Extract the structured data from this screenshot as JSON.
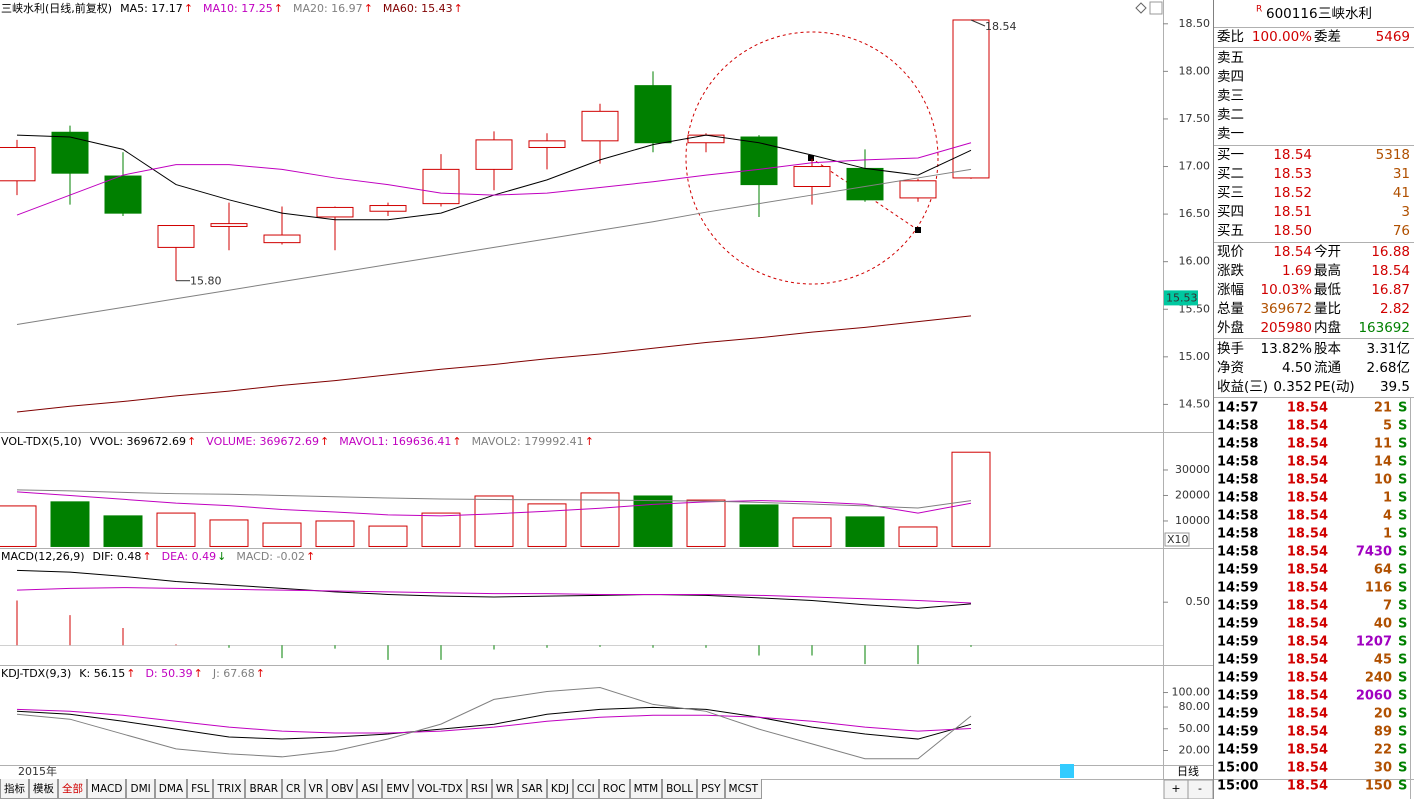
{
  "chart_data": [
    {
      "type": "candlestick",
      "title": "三峡水利(日线,前复权)",
      "legend": [
        {
          "text": "MA5: 17.17",
          "color": "#000000",
          "arrow": "↑",
          "arrow_color": "#e00000"
        },
        {
          "text": "MA10: 17.25",
          "color": "#c000c0",
          "arrow": "↑",
          "arrow_color": "#e00000"
        },
        {
          "text": "MA20: 16.97",
          "color": "#808080",
          "arrow": "↑",
          "arrow_color": "#e00000"
        },
        {
          "text": "MA60: 15.43",
          "color": "#800000",
          "arrow": "↑",
          "arrow_color": "#e00000"
        }
      ],
      "open": [
        16.85,
        17.36,
        16.9,
        16.15,
        16.37,
        16.2,
        16.47,
        16.53,
        16.61,
        16.97,
        17.2,
        17.27,
        17.85,
        17.25,
        17.31,
        16.79,
        16.98,
        16.67,
        16.88
      ],
      "high": [
        17.28,
        17.43,
        17.15,
        16.38,
        16.62,
        16.58,
        16.58,
        16.62,
        17.13,
        17.37,
        17.35,
        17.66,
        18.0,
        17.35,
        17.33,
        17.08,
        17.18,
        16.87,
        18.54
      ],
      "low": [
        16.7,
        16.6,
        16.48,
        15.8,
        16.12,
        16.18,
        16.12,
        16.48,
        16.58,
        16.75,
        16.97,
        17.03,
        17.15,
        17.15,
        16.47,
        16.6,
        16.63,
        16.63,
        16.87
      ],
      "close": [
        17.2,
        16.93,
        16.51,
        16.38,
        16.4,
        16.28,
        16.57,
        16.59,
        16.97,
        17.28,
        17.27,
        17.58,
        17.25,
        17.33,
        16.81,
        17.0,
        16.65,
        16.85,
        18.54
      ],
      "up_color": "#d00000",
      "down_color": "#008000",
      "series": [
        {
          "color": "#000000",
          "values": [
            17.33,
            17.31,
            17.18,
            16.81,
            16.65,
            16.51,
            16.44,
            16.44,
            16.51,
            16.7,
            16.86,
            17.07,
            17.23,
            17.33,
            17.25,
            17.12,
            16.98,
            16.91,
            17.17
          ]
        },
        {
          "color": "#c000c0",
          "values": [
            16.49,
            16.7,
            16.91,
            17.02,
            17.02,
            16.97,
            16.88,
            16.81,
            16.72,
            16.7,
            16.72,
            16.78,
            16.84,
            16.91,
            16.97,
            17.04,
            17.07,
            17.09,
            17.25
          ]
        },
        {
          "color": "#808080",
          "values": [
            15.34,
            15.43,
            15.52,
            15.61,
            15.7,
            15.79,
            15.88,
            15.97,
            16.06,
            16.15,
            16.24,
            16.33,
            16.42,
            16.52,
            16.61,
            16.7,
            16.79,
            16.88,
            16.97
          ]
        },
        {
          "color": "#800000",
          "values": [
            14.42,
            14.48,
            14.53,
            14.59,
            14.64,
            14.7,
            14.75,
            14.81,
            14.87,
            14.92,
            14.98,
            15.03,
            15.09,
            15.15,
            15.2,
            15.26,
            15.31,
            15.37,
            15.43
          ]
        }
      ],
      "ylim": [
        14.21,
        18.75
      ],
      "yticks": [
        {
          "value": 18.5,
          "label": "18.50"
        },
        {
          "value": 18,
          "label": "18.00"
        },
        {
          "value": 17.5,
          "label": "17.50"
        },
        {
          "value": 17,
          "label": "17.00"
        },
        {
          "value": 16.5,
          "label": "16.50"
        },
        {
          "value": 16,
          "label": "16.00"
        },
        {
          "value": 15.5,
          "label": "15.50"
        },
        {
          "value": 15,
          "label": "15.00"
        },
        {
          "value": 14.5,
          "label": "14.50"
        }
      ],
      "annotations": [
        18.54,
        {
          "value": 15.8,
          "label": "15.80"
        }
      ],
      "marker": 15.53,
      "marker_color": "#00c8a0"
    },
    {
      "type": "bar",
      "title": "VOL-TDX(5,10)",
      "legend": [
        {
          "text": "VVOL: 369672.69",
          "color": "#000000",
          "arrow": "↑",
          "arrow_color": "#e00000"
        },
        {
          "text": "VOLUME: 369672.69",
          "color": "#c000c0",
          "arrow": "↑",
          "arrow_color": "#e00000"
        },
        {
          "text": "MAVOL1: 169636.41",
          "color": "#c000c0",
          "arrow": "↑",
          "arrow_color": "#e00000"
        },
        {
          "text": "MAVOL2: 179992.41",
          "color": "#808080",
          "arrow": "↑",
          "arrow_color": "#e00000"
        }
      ],
      "values": [
        15900,
        17500,
        12000,
        13100,
        10400,
        9200,
        10000,
        8000,
        13100,
        19800,
        16700,
        21000,
        19800,
        18200,
        16300,
        11200,
        11600,
        7650,
        36967
      ],
      "colors": [
        "#d00000",
        "#008000",
        "#008000",
        "#d00000",
        "#d00000",
        "#d00000",
        "#d00000",
        "#d00000",
        "#d00000",
        "#d00000",
        "#d00000",
        "#d00000",
        "#008000",
        "#d00000",
        "#008000",
        "#d00000",
        "#008000",
        "#d00000",
        "#d00000"
      ],
      "hollow_color": "#d00000",
      "series": [
        {
          "color": "#c000c0",
          "values": [
            21400,
            20000,
            18500,
            17000,
            16000,
            14500,
            13500,
            12400,
            12000,
            12800,
            13800,
            15000,
            16500,
            17500,
            18000,
            17500,
            16500,
            13100,
            16964
          ]
        },
        {
          "color": "#808080",
          "values": [
            22200,
            21800,
            21200,
            20700,
            20500,
            20000,
            19500,
            19000,
            18600,
            18400,
            18300,
            18200,
            18000,
            17800,
            17300,
            16600,
            15900,
            15100,
            17999
          ]
        }
      ],
      "ylim": [
        -600,
        44500
      ],
      "yticks": [
        30000,
        20000,
        10000
      ],
      "axis_note": "X10"
    },
    {
      "type": "macd",
      "title": "MACD(12,26,9)",
      "legend": [
        {
          "text": "DIF: 0.48",
          "color": "#000000",
          "arrow": "↑",
          "arrow_color": "#e00000"
        },
        {
          "text": "DEA: 0.49",
          "color": "#c000c0",
          "arrow": "↓",
          "arrow_color": "#008000"
        },
        {
          "text": "MACD: -0.02",
          "color": "#808080",
          "arrow": "↑",
          "arrow_color": "#e00000"
        }
      ],
      "values": [
        0.52,
        0.35,
        0.2,
        0.01,
        -0.03,
        -0.15,
        -0.04,
        -0.17,
        -0.17,
        -0.05,
        -0.03,
        -0.02,
        -0.03,
        -0.03,
        -0.12,
        -0.12,
        -0.22,
        -0.22,
        -0.02
      ],
      "up_color": "#d00000",
      "down_color": "#008000",
      "series": [
        {
          "color": "#000000",
          "values": [
            0.87,
            0.85,
            0.8,
            0.74,
            0.7,
            0.66,
            0.62,
            0.59,
            0.57,
            0.56,
            0.57,
            0.58,
            0.59,
            0.58,
            0.55,
            0.52,
            0.47,
            0.43,
            0.48
          ]
        },
        {
          "color": "#c000c0",
          "values": [
            0.64,
            0.66,
            0.67,
            0.66,
            0.65,
            0.64,
            0.63,
            0.62,
            0.61,
            0.6,
            0.6,
            0.59,
            0.59,
            0.59,
            0.58,
            0.56,
            0.54,
            0.52,
            0.49
          ]
        }
      ],
      "ylim": [
        -0.23,
        1.13
      ],
      "yticks": [
        {
          "value": 0.5,
          "label": "0.50"
        }
      ]
    },
    {
      "type": "line",
      "title": "KDJ-TDX(9,3)",
      "legend": [
        {
          "text": "K: 56.15",
          "color": "#000000",
          "arrow": "↑",
          "arrow_color": "#e00000"
        },
        {
          "text": "D: 50.39",
          "color": "#c000c0",
          "arrow": "↑",
          "arrow_color": "#e00000"
        },
        {
          "text": "J: 67.68",
          "color": "#808080",
          "arrow": "↑",
          "arrow_color": "#e00000"
        }
      ],
      "series": [
        {
          "color": "#000000",
          "values": [
            74.1,
            70.0,
            60.4,
            49.5,
            38.6,
            35.8,
            38.6,
            42.7,
            49.5,
            56.3,
            70.0,
            76.8,
            79.5,
            76.8,
            65.9,
            52.3,
            42.7,
            35.8,
            56.15
          ]
        },
        {
          "color": "#c000c0",
          "values": [
            76.8,
            74.1,
            68.6,
            60.4,
            52.2,
            46.8,
            44.1,
            44.1,
            46.8,
            52.2,
            60.4,
            65.9,
            68.6,
            68.6,
            65.9,
            60.4,
            52.2,
            46.8,
            50.39
          ]
        },
        {
          "color": "#808080",
          "values": [
            70.0,
            63.2,
            42.7,
            22.2,
            15.4,
            11.3,
            19.5,
            35.9,
            56.4,
            90.5,
            101.4,
            106.9,
            83.6,
            74.1,
            49.5,
            29.1,
            8.6,
            8.6,
            67.68
          ]
        }
      ],
      "ylim": [
        0,
        138
      ],
      "yticks": [
        {
          "value": 100,
          "label": "100.00"
        },
        {
          "value": 80,
          "label": "80.00"
        },
        {
          "value": 50,
          "label": "50.00"
        },
        {
          "value": 20,
          "label": "20.00"
        }
      ]
    }
  ],
  "date_label": "2015年",
  "period": "日线",
  "zoom_buttons": [
    "+",
    "-"
  ],
  "toolbar": {
    "items": [
      "指标",
      "模板",
      "全部",
      "MACD",
      "DMI",
      "DMA",
      "FSL",
      "TRIX",
      "BRAR",
      "CR",
      "VR",
      "OBV",
      "ASI",
      "EMV",
      "VOL-TDX",
      "RSI",
      "WR",
      "SAR",
      "KDJ",
      "CCI",
      "ROC",
      "MTM",
      "BOLL",
      "PSY",
      "MCST"
    ],
    "active": 2
  },
  "quote": {
    "flag": "R",
    "code": "600116",
    "name": "三峡水利",
    "summary": {
      "cells": [
        "委比",
        "100.00%",
        "委差",
        "5469"
      ],
      "colors": [
        "#000000",
        "#d00000",
        "#000000",
        "#d00000"
      ]
    },
    "asks": [
      "卖五",
      "卖四",
      "卖三",
      "卖二",
      "卖一"
    ],
    "bids": [
      [
        "买一",
        "18.54",
        "5318"
      ],
      [
        "买二",
        "18.53",
        "31"
      ],
      [
        "买三",
        "18.52",
        "41"
      ],
      [
        "买四",
        "18.51",
        "3"
      ],
      [
        "买五",
        "18.50",
        "76"
      ]
    ],
    "stats": [
      {
        "cells": [
          "现价",
          "18.54",
          "今开",
          "16.88"
        ],
        "colors": [
          "#000000",
          "#d00000",
          "#000000",
          "#d00000"
        ]
      },
      {
        "cells": [
          "涨跌",
          "1.69",
          "最高",
          "18.54"
        ],
        "colors": [
          "#000000",
          "#d00000",
          "#000000",
          "#d00000"
        ]
      },
      {
        "cells": [
          "涨幅",
          "10.03%",
          "最低",
          "16.87"
        ],
        "colors": [
          "#000000",
          "#d00000",
          "#000000",
          "#d00000"
        ]
      },
      {
        "cells": [
          "总量",
          "369672",
          "量比",
          "2.82"
        ],
        "colors": [
          "#000000",
          "#b05000",
          "#000000",
          "#d00000"
        ]
      },
      {
        "cells": [
          "外盘",
          "205980",
          "内盘",
          "163692"
        ],
        "colors": [
          "#000000",
          "#d00000",
          "#000000",
          "#008000"
        ]
      }
    ],
    "fundamentals": [
      {
        "cells": [
          "换手",
          "13.82%",
          "股本",
          "3.31亿"
        ],
        "colors": [
          "#000000",
          "#000000",
          "#000000",
          "#000000"
        ]
      },
      {
        "cells": [
          "净资",
          "4.50",
          "流通",
          "2.68亿"
        ],
        "colors": [
          "#000000",
          "#000000",
          "#000000",
          "#000000"
        ]
      },
      {
        "cells": [
          "收益(三)",
          "0.352",
          "PE(动)",
          "39.5"
        ],
        "colors": [
          "#000000",
          "#000000",
          "#000000",
          "#000000"
        ]
      }
    ],
    "trades": [
      [
        "14:57",
        "18.54",
        "21",
        "S"
      ],
      [
        "14:58",
        "18.54",
        "5",
        "S"
      ],
      [
        "14:58",
        "18.54",
        "11",
        "S"
      ],
      [
        "14:58",
        "18.54",
        "14",
        "S"
      ],
      [
        "14:58",
        "18.54",
        "10",
        "S"
      ],
      [
        "14:58",
        "18.54",
        "1",
        "S"
      ],
      [
        "14:58",
        "18.54",
        "4",
        "S"
      ],
      [
        "14:58",
        "18.54",
        "1",
        "S"
      ],
      [
        "14:58",
        "18.54",
        "7430",
        "S"
      ],
      [
        "14:59",
        "18.54",
        "64",
        "S"
      ],
      [
        "14:59",
        "18.54",
        "116",
        "S"
      ],
      [
        "14:59",
        "18.54",
        "7",
        "S"
      ],
      [
        "14:59",
        "18.54",
        "40",
        "S"
      ],
      [
        "14:59",
        "18.54",
        "1207",
        "S"
      ],
      [
        "14:59",
        "18.54",
        "45",
        "S"
      ],
      [
        "14:59",
        "18.54",
        "240",
        "S"
      ],
      [
        "14:59",
        "18.54",
        "2060",
        "S"
      ],
      [
        "14:59",
        "18.54",
        "20",
        "S"
      ],
      [
        "14:59",
        "18.54",
        "89",
        "S"
      ],
      [
        "14:59",
        "18.54",
        "22",
        "S"
      ],
      [
        "15:00",
        "18.54",
        "30",
        "S"
      ],
      [
        "15:00",
        "18.54",
        "150",
        "S"
      ]
    ]
  }
}
